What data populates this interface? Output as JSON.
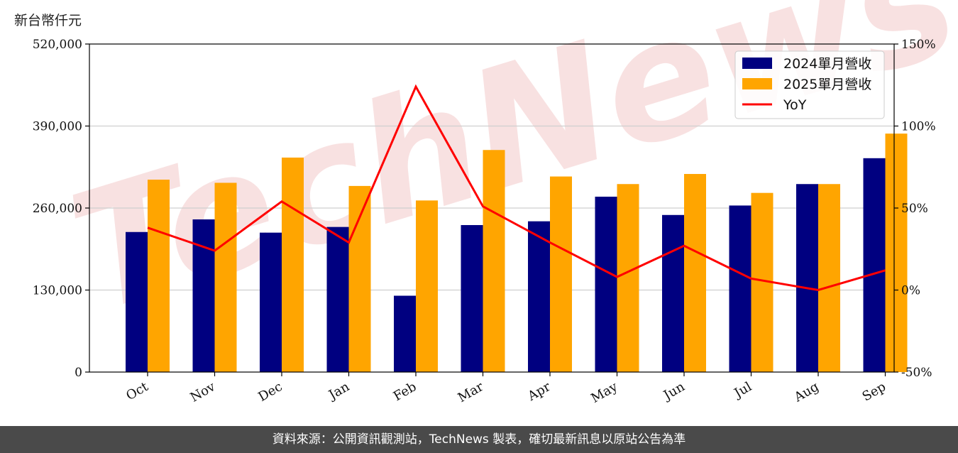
{
  "y_unit_label": "新台幣仟元",
  "watermark": "TechNews",
  "footer_text": "資料來源：公開資訊觀測站，TechNews 製表，確切最新訊息以原站公告為準",
  "colors": {
    "bar_2024": "#000080",
    "bar_2025": "#ffa500",
    "yoy_line": "#ff0000",
    "footer_bg": "#4a4a4a",
    "watermark": "#f3c9c9"
  },
  "chart_data": {
    "type": "bar",
    "categories": [
      "Oct",
      "Nov",
      "Dec",
      "Jan",
      "Feb",
      "Mar",
      "Apr",
      "May",
      "Jun",
      "Jul",
      "Aug",
      "Sep"
    ],
    "series": [
      {
        "name": "2024單月營收",
        "values": [
          222000,
          242000,
          221000,
          230000,
          121000,
          233000,
          239000,
          278000,
          249000,
          264000,
          298000,
          339000
        ]
      },
      {
        "name": "2025單月營收",
        "values": [
          305000,
          300000,
          340000,
          295000,
          272000,
          352000,
          310000,
          298000,
          314000,
          284000,
          298000,
          378000
        ]
      }
    ],
    "line_series": {
      "name": "YoY",
      "axis": "right",
      "values": [
        38,
        24,
        54,
        29,
        124,
        51,
        29,
        8,
        27,
        7,
        0,
        12
      ]
    },
    "ylim": [
      0,
      520000
    ],
    "y_ticks": [
      0,
      130000,
      260000,
      390000,
      520000
    ],
    "y_tick_labels": [
      "0",
      "130,000",
      "260,000",
      "390,000",
      "520,000"
    ],
    "y2lim": [
      -50,
      150
    ],
    "y2_ticks": [
      -50,
      0,
      50,
      100,
      150
    ],
    "y2_tick_labels": [
      "-50%",
      "0%",
      "50%",
      "100%",
      "150%"
    ],
    "grid": "horizontal",
    "legend_position": "top-right"
  }
}
